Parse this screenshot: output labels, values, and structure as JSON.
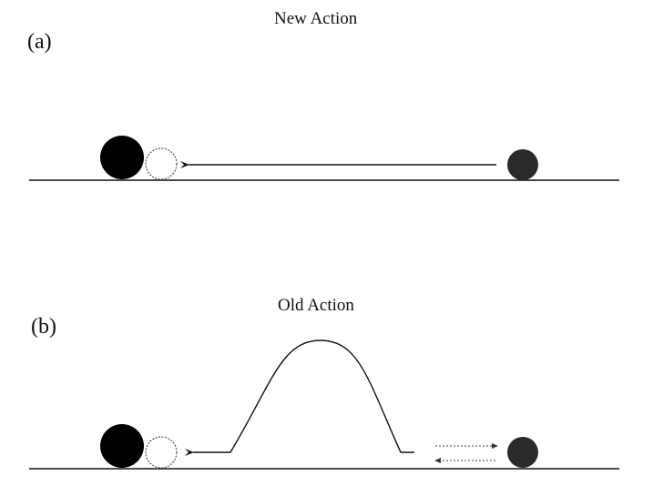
{
  "panel_a": {
    "label": "(a)",
    "title": "New Action"
  },
  "panel_b": {
    "label": "(b)",
    "title": "Old Action"
  },
  "colors": {
    "line": "#111111",
    "large_ball": "#000000",
    "small_ball": "#2a2a2a",
    "ghost_ball_stroke": "#555555"
  }
}
